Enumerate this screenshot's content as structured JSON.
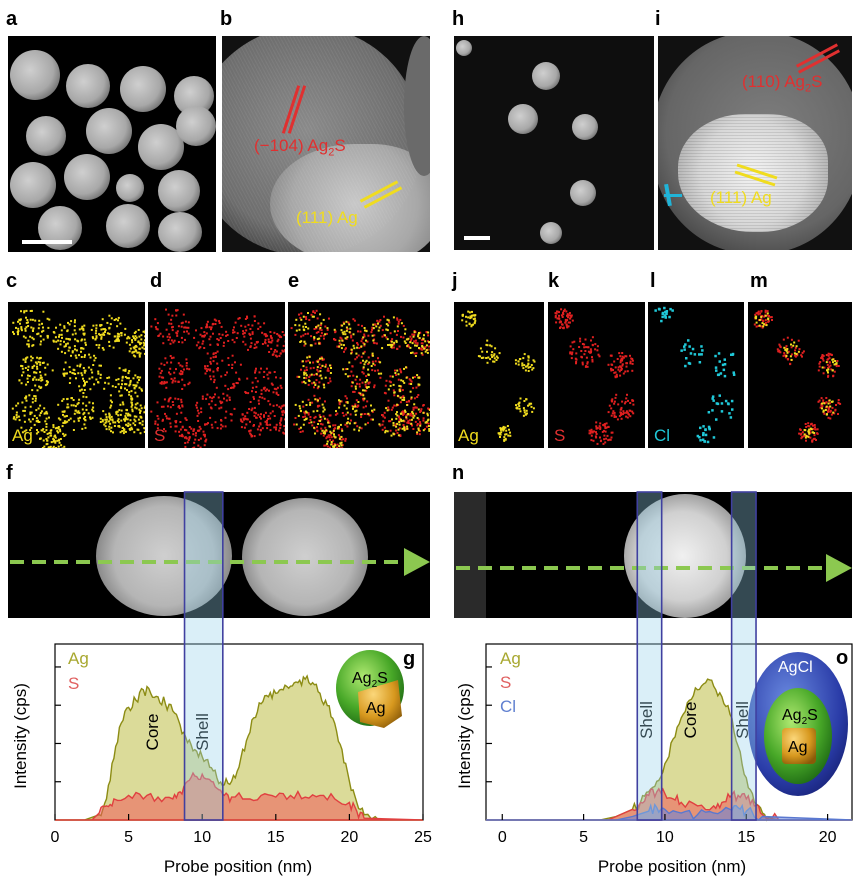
{
  "panel_letters": {
    "a": "a",
    "b": "b",
    "c": "c",
    "d": "d",
    "e": "e",
    "f": "f",
    "g": "g",
    "h": "h",
    "i": "i",
    "j": "j",
    "k": "k",
    "l": "l",
    "m": "m",
    "n": "n",
    "o": "o"
  },
  "lattice_labels": {
    "b_ag2s_pre": "(−104) Ag",
    "b_ag2s_sub": "2",
    "b_ag2s_post": "S",
    "b_ag": "(111) Ag",
    "i_ag2s_pre": "(110) Ag",
    "i_ag2s_sub": "2",
    "i_ag2s_post": "S",
    "i_ag": "(111) Ag"
  },
  "map_labels": {
    "c": "Ag",
    "d": "S",
    "e": "",
    "j": "Ag",
    "k": "S",
    "l": "Cl",
    "m": ""
  },
  "colors": {
    "ag": "#f0dc1e",
    "s": "#e02020",
    "cl": "#20c8d8",
    "arrow": "#8cc850",
    "ag_line": "#8c8c14",
    "s_line": "#e04040",
    "cl_line": "#5a78d0",
    "shell_box": "#4040a0"
  },
  "chart_data": [
    {
      "type": "area",
      "panel": "g",
      "xlabel": "Probe position (nm)",
      "ylabel": "Intensity (cps)",
      "xlim": [
        0,
        25
      ],
      "xticks": [
        "0",
        "5",
        "10",
        "15",
        "20",
        "25"
      ],
      "legend": [
        "Ag",
        "S"
      ],
      "annotations": [
        "Core",
        "Shell"
      ],
      "shell_region": [
        8.8,
        11.4
      ],
      "inset_labels": {
        "shell": "Ag",
        "shell_sub": "2",
        "shell_post": "S",
        "core": "Ag"
      },
      "series": [
        {
          "name": "Ag",
          "x": [
            0,
            2,
            3,
            3.5,
            4,
            4.5,
            5,
            5.5,
            6,
            6.5,
            7,
            7.5,
            8,
            8.5,
            9,
            9.5,
            10,
            10.5,
            11,
            11.5,
            12,
            12.5,
            13,
            13.5,
            14,
            14.5,
            15,
            15.5,
            16,
            16.5,
            17,
            17.5,
            18,
            18.5,
            19,
            19.5,
            20,
            20.5,
            21,
            22,
            25
          ],
          "y": [
            0,
            0,
            0.03,
            0.12,
            0.35,
            0.55,
            0.64,
            0.68,
            0.74,
            0.72,
            0.7,
            0.66,
            0.62,
            0.54,
            0.44,
            0.4,
            0.36,
            0.3,
            0.24,
            0.2,
            0.22,
            0.3,
            0.45,
            0.58,
            0.66,
            0.7,
            0.72,
            0.74,
            0.76,
            0.78,
            0.8,
            0.78,
            0.72,
            0.65,
            0.55,
            0.4,
            0.22,
            0.1,
            0.03,
            0,
            0
          ]
        },
        {
          "name": "S",
          "x": [
            0,
            2.5,
            3,
            3.5,
            4,
            5,
            6,
            7,
            8,
            8.5,
            9,
            9.5,
            10,
            10.5,
            11,
            11.5,
            12,
            13,
            14,
            15,
            16,
            17,
            18,
            19,
            20,
            20.5,
            21,
            25
          ],
          "y": [
            0,
            0,
            0.04,
            0.08,
            0.12,
            0.14,
            0.12,
            0.13,
            0.12,
            0.16,
            0.22,
            0.25,
            0.26,
            0.23,
            0.18,
            0.14,
            0.13,
            0.12,
            0.14,
            0.13,
            0.14,
            0.13,
            0.14,
            0.12,
            0.1,
            0.05,
            0.01,
            0
          ]
        }
      ]
    },
    {
      "type": "area",
      "panel": "o",
      "xlabel": "Probe position (nm)",
      "ylabel": "Intensity (cps)",
      "xlim": [
        -1,
        21.5
      ],
      "xticks": [
        "0",
        "5",
        "10",
        "15",
        "20"
      ],
      "legend": [
        "Ag",
        "S",
        "Cl"
      ],
      "annotations": [
        "Shell",
        "Core",
        "Shell"
      ],
      "shell_regions": [
        [
          8.3,
          9.8
        ],
        [
          14.1,
          15.6
        ]
      ],
      "inset_labels": {
        "outer": "AgCl",
        "shell": "Ag",
        "shell_sub": "2",
        "shell_post": "S",
        "core": "Ag"
      },
      "series": [
        {
          "name": "Ag",
          "x": [
            -1,
            6,
            7,
            8,
            8.5,
            9,
            9.5,
            10,
            10.5,
            11,
            11.5,
            12,
            12.5,
            13,
            13.5,
            14,
            14.5,
            15,
            15.5,
            16,
            16.5,
            17,
            21.5
          ],
          "y": [
            0,
            0,
            0.02,
            0.06,
            0.1,
            0.16,
            0.22,
            0.32,
            0.46,
            0.58,
            0.68,
            0.74,
            0.78,
            0.76,
            0.7,
            0.6,
            0.42,
            0.24,
            0.1,
            0.04,
            0.01,
            0,
            0
          ]
        },
        {
          "name": "S",
          "x": [
            -1,
            6.5,
            7,
            8,
            8.5,
            9,
            9.5,
            10,
            10.5,
            11,
            12,
            13,
            13.5,
            14,
            14.5,
            15,
            15.5,
            16,
            17,
            21.5
          ],
          "y": [
            0,
            0,
            0.02,
            0.06,
            0.1,
            0.14,
            0.16,
            0.15,
            0.12,
            0.1,
            0.08,
            0.08,
            0.1,
            0.13,
            0.14,
            0.12,
            0.08,
            0.03,
            0,
            0
          ]
        },
        {
          "name": "Cl",
          "x": [
            -1,
            7,
            8,
            9,
            9.5,
            10,
            11,
            12,
            13,
            14,
            14.5,
            15,
            16,
            21.5
          ],
          "y": [
            0,
            0,
            0.02,
            0.05,
            0.07,
            0.06,
            0.04,
            0.03,
            0.04,
            0.06,
            0.07,
            0.05,
            0.02,
            0
          ]
        }
      ]
    }
  ]
}
